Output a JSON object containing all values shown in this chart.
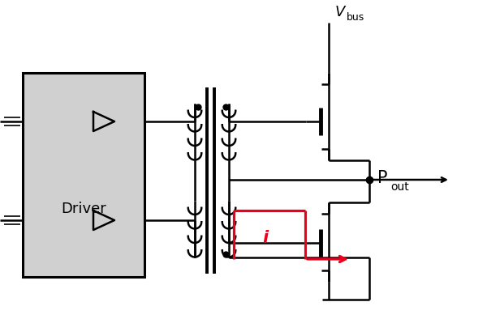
{
  "bg_color": "#ffffff",
  "line_color": "#000000",
  "red_color": "#e8001c",
  "gray_fill": "#d0d0d0",
  "driver_text": "Driver",
  "vbus_main": "V",
  "vbus_sub": "bus",
  "pout_main": "P",
  "pout_sub": "out",
  "i_label": "i",
  "figsize": [
    6.0,
    4.15
  ],
  "dpi": 100
}
